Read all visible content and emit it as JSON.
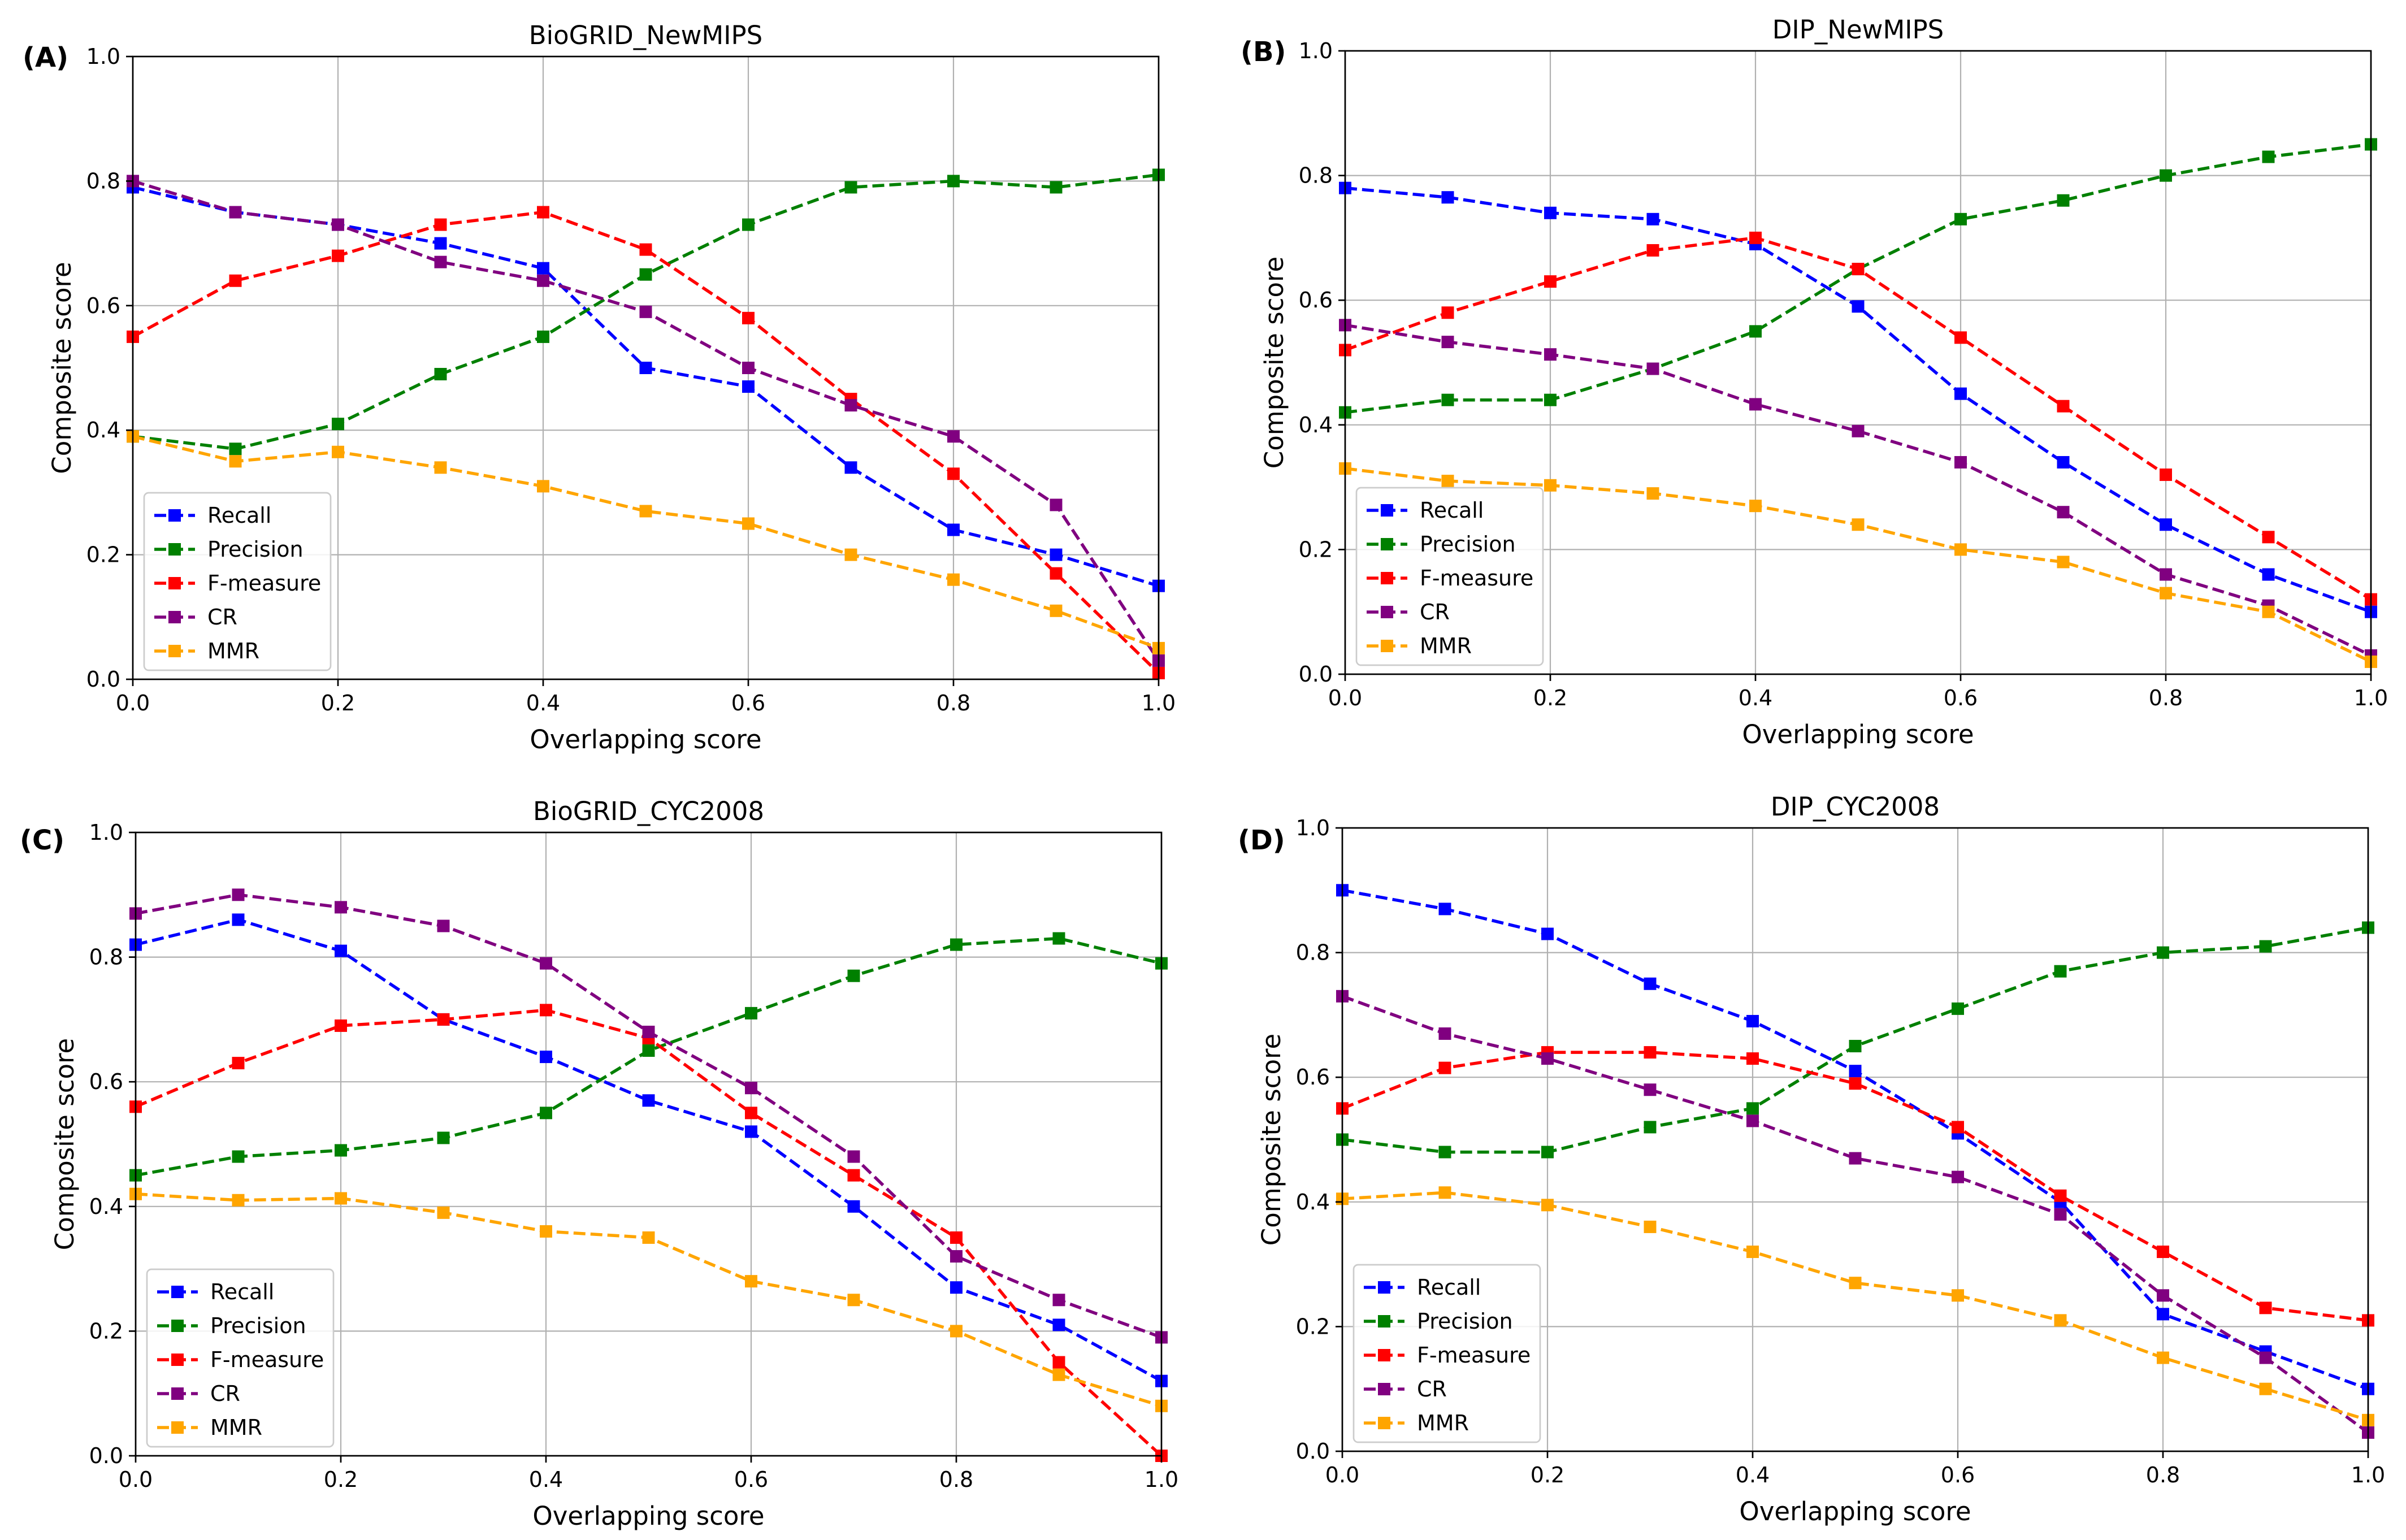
{
  "chart_data": [
    {
      "type": "line",
      "panel_label": "(A)",
      "title": "BioGRID_NewMIPS",
      "xlabel": "Overlapping score",
      "ylabel": "Composite score",
      "xlim": [
        0,
        1
      ],
      "ylim": [
        0,
        1
      ],
      "xticks": [
        "0.0",
        "0.2",
        "0.4",
        "0.6",
        "0.8",
        "1.0"
      ],
      "yticks": [
        "0.0",
        "0.2",
        "0.4",
        "0.6",
        "0.8",
        "1.0"
      ],
      "grid": true,
      "legend_position": "bottom-left",
      "x": [
        0.0,
        0.1,
        0.2,
        0.3,
        0.4,
        0.5,
        0.6,
        0.7,
        0.8,
        0.9,
        1.0
      ],
      "series": [
        {
          "name": "Recall",
          "color": "#0000ff",
          "values": [
            0.79,
            0.75,
            0.73,
            0.7,
            0.66,
            0.5,
            0.47,
            0.34,
            0.24,
            0.2,
            0.15
          ]
        },
        {
          "name": "Precision",
          "color": "#008000",
          "values": [
            0.39,
            0.37,
            0.41,
            0.49,
            0.55,
            0.65,
            0.73,
            0.79,
            0.8,
            0.79,
            0.81
          ]
        },
        {
          "name": "F-measure",
          "color": "#ff0000",
          "values": [
            0.55,
            0.64,
            0.68,
            0.73,
            0.75,
            0.69,
            0.58,
            0.45,
            0.33,
            0.17,
            0.01
          ]
        },
        {
          "name": "CR",
          "color": "#800080",
          "values": [
            0.8,
            0.75,
            0.73,
            0.67,
            0.64,
            0.59,
            0.5,
            0.44,
            0.39,
            0.28,
            0.03
          ]
        },
        {
          "name": "MMR",
          "color": "#ffa500",
          "values": [
            0.39,
            0.35,
            0.365,
            0.34,
            0.31,
            0.27,
            0.25,
            0.2,
            0.16,
            0.11,
            0.05
          ]
        }
      ]
    },
    {
      "type": "line",
      "panel_label": "(B)",
      "title": "DIP_NewMIPS",
      "xlabel": "Overlapping score",
      "ylabel": "Composite score",
      "xlim": [
        0,
        1
      ],
      "ylim": [
        0,
        1
      ],
      "xticks": [
        "0.0",
        "0.2",
        "0.4",
        "0.6",
        "0.8",
        "1.0"
      ],
      "yticks": [
        "0.0",
        "0.2",
        "0.4",
        "0.6",
        "0.8",
        "1.0"
      ],
      "grid": true,
      "legend_position": "bottom-left",
      "x": [
        0.0,
        0.1,
        0.2,
        0.3,
        0.4,
        0.5,
        0.6,
        0.7,
        0.8,
        0.9,
        1.0
      ],
      "series": [
        {
          "name": "Recall",
          "color": "#0000ff",
          "values": [
            0.78,
            0.765,
            0.74,
            0.73,
            0.69,
            0.59,
            0.45,
            0.34,
            0.24,
            0.16,
            0.1
          ]
        },
        {
          "name": "Precision",
          "color": "#008000",
          "values": [
            0.42,
            0.44,
            0.44,
            0.49,
            0.55,
            0.65,
            0.73,
            0.76,
            0.8,
            0.83,
            0.85
          ]
        },
        {
          "name": "F-measure",
          "color": "#ff0000",
          "values": [
            0.52,
            0.58,
            0.63,
            0.68,
            0.7,
            0.65,
            0.54,
            0.43,
            0.32,
            0.22,
            0.12
          ]
        },
        {
          "name": "CR",
          "color": "#800080",
          "values": [
            0.56,
            0.533,
            0.513,
            0.49,
            0.433,
            0.39,
            0.34,
            0.26,
            0.16,
            0.11,
            0.03
          ]
        },
        {
          "name": "MMR",
          "color": "#ffa500",
          "values": [
            0.33,
            0.31,
            0.303,
            0.29,
            0.27,
            0.24,
            0.2,
            0.18,
            0.13,
            0.1,
            0.02
          ]
        }
      ]
    },
    {
      "type": "line",
      "panel_label": "(C)",
      "title": "BioGRID_CYC2008",
      "xlabel": "Overlapping score",
      "ylabel": "Composite score",
      "xlim": [
        0,
        1
      ],
      "ylim": [
        0,
        1
      ],
      "xticks": [
        "0.0",
        "0.2",
        "0.4",
        "0.6",
        "0.8",
        "1.0"
      ],
      "yticks": [
        "0.0",
        "0.2",
        "0.4",
        "0.6",
        "0.8",
        "1.0"
      ],
      "grid": true,
      "legend_position": "bottom-left",
      "x": [
        0.0,
        0.1,
        0.2,
        0.3,
        0.4,
        0.5,
        0.6,
        0.7,
        0.8,
        0.9,
        1.0
      ],
      "series": [
        {
          "name": "Recall",
          "color": "#0000ff",
          "values": [
            0.82,
            0.86,
            0.81,
            0.7,
            0.64,
            0.57,
            0.52,
            0.4,
            0.27,
            0.21,
            0.12
          ]
        },
        {
          "name": "Precision",
          "color": "#008000",
          "values": [
            0.45,
            0.48,
            0.49,
            0.51,
            0.55,
            0.65,
            0.71,
            0.77,
            0.82,
            0.83,
            0.79
          ]
        },
        {
          "name": "F-measure",
          "color": "#ff0000",
          "values": [
            0.56,
            0.63,
            0.69,
            0.7,
            0.715,
            0.67,
            0.55,
            0.45,
            0.35,
            0.15,
            0.0
          ]
        },
        {
          "name": "CR",
          "color": "#800080",
          "values": [
            0.87,
            0.9,
            0.88,
            0.85,
            0.79,
            0.68,
            0.59,
            0.48,
            0.32,
            0.25,
            0.19
          ]
        },
        {
          "name": "MMR",
          "color": "#ffa500",
          "values": [
            0.42,
            0.41,
            0.413,
            0.39,
            0.36,
            0.35,
            0.28,
            0.25,
            0.2,
            0.13,
            0.08
          ]
        }
      ]
    },
    {
      "type": "line",
      "panel_label": "(D)",
      "title": "DIP_CYC2008",
      "xlabel": "Overlapping score",
      "ylabel": "Composite score",
      "xlim": [
        0,
        1
      ],
      "ylim": [
        0,
        1
      ],
      "xticks": [
        "0.0",
        "0.2",
        "0.4",
        "0.6",
        "0.8",
        "1.0"
      ],
      "yticks": [
        "0.0",
        "0.2",
        "0.4",
        "0.6",
        "0.8",
        "1.0"
      ],
      "grid": true,
      "legend_position": "bottom-left",
      "x": [
        0.0,
        0.1,
        0.2,
        0.3,
        0.4,
        0.5,
        0.6,
        0.7,
        0.8,
        0.9,
        1.0
      ],
      "series": [
        {
          "name": "Recall",
          "color": "#0000ff",
          "values": [
            0.9,
            0.87,
            0.83,
            0.75,
            0.69,
            0.61,
            0.51,
            0.4,
            0.22,
            0.16,
            0.1
          ]
        },
        {
          "name": "Precision",
          "color": "#008000",
          "values": [
            0.5,
            0.48,
            0.48,
            0.52,
            0.55,
            0.65,
            0.71,
            0.77,
            0.8,
            0.81,
            0.84
          ]
        },
        {
          "name": "F-measure",
          "color": "#ff0000",
          "values": [
            0.55,
            0.615,
            0.64,
            0.64,
            0.63,
            0.59,
            0.52,
            0.41,
            0.32,
            0.23,
            0.21
          ]
        },
        {
          "name": "CR",
          "color": "#800080",
          "values": [
            0.73,
            0.67,
            0.63,
            0.58,
            0.53,
            0.47,
            0.44,
            0.38,
            0.25,
            0.15,
            0.03
          ]
        },
        {
          "name": "MMR",
          "color": "#ffa500",
          "values": [
            0.405,
            0.415,
            0.395,
            0.36,
            0.32,
            0.27,
            0.25,
            0.21,
            0.15,
            0.1,
            0.05
          ]
        }
      ]
    }
  ]
}
